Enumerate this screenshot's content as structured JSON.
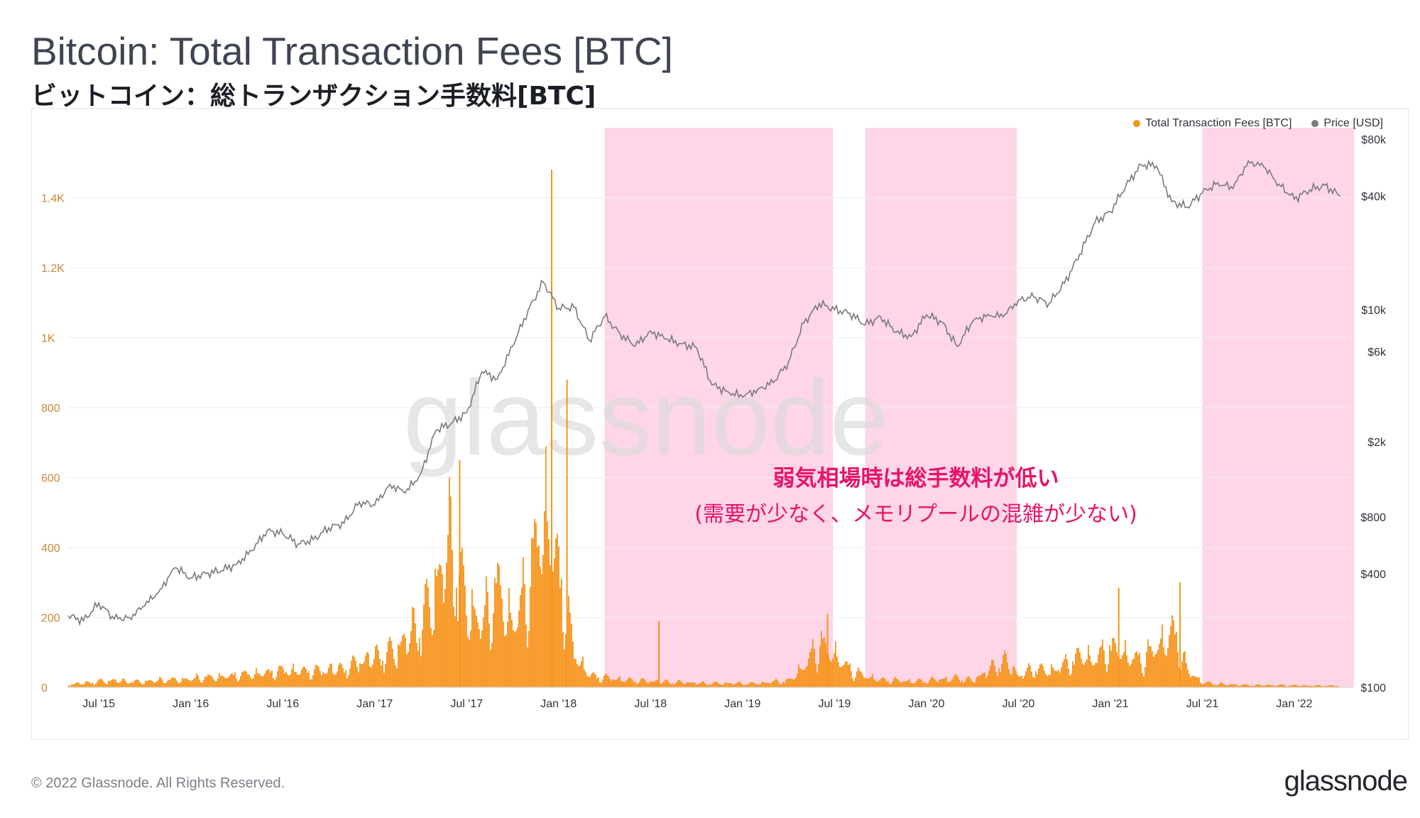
{
  "title": "Bitcoin: Total Transaction Fees [BTC]",
  "subtitle": "ビットコイン：総トランザクション手数料[BTC]",
  "footer": {
    "copyright": "© 2022 Glassnode. All Rights Reserved.",
    "logo": "glassnode"
  },
  "watermark": "glassnode",
  "annotation": {
    "line1": "弱気相場時は総手数料が低い",
    "line2": "(需要が少なく、メモリプールの混雑が少ない)",
    "color": "#e8136a"
  },
  "colors": {
    "fees": "#f7931a",
    "price": "#7a7a7a",
    "shade": "#ffd6e7",
    "left_tick": "#c98a3a"
  },
  "chart_data": {
    "type": "bar",
    "legend": [
      "Total Transaction Fees [BTC]",
      "Price [USD]"
    ],
    "legend_position": "top-right",
    "x_ticks": [
      "Jul '15",
      "Jan '16",
      "Jul '16",
      "Jan '17",
      "Jul '17",
      "Jan '18",
      "Jul '18",
      "Jan '19",
      "Jul '19",
      "Jan '20",
      "Jul '20",
      "Jan '21",
      "Jul '21",
      "Jan '22"
    ],
    "y_left": {
      "ticks": [
        "0",
        "200",
        "400",
        "600",
        "800",
        "1K",
        "1.2K",
        "1.4K"
      ],
      "range": [
        0,
        1600
      ]
    },
    "y_right": {
      "scale": "log",
      "ticks": [
        "$100",
        "$400",
        "$800",
        "$2k",
        "$6k",
        "$10k",
        "$40k",
        "$80k"
      ],
      "range": [
        100,
        80000
      ]
    },
    "grid": true,
    "shaded_regions": [
      [
        "Apr '18",
        "Jun '19"
      ],
      [
        "Sep '19",
        "Jun '20"
      ],
      [
        "Jul '21",
        "Apr '22"
      ]
    ],
    "series": [
      {
        "name": "Total Transaction Fees [BTC]",
        "type": "bar",
        "color": "#f7931a",
        "points": [
          [
            "May '15",
            12
          ],
          [
            "Jun '15",
            15
          ],
          [
            "Jul '15",
            22
          ],
          [
            "Aug '15",
            25
          ],
          [
            "Sep '15",
            20
          ],
          [
            "Oct '15",
            22
          ],
          [
            "Nov '15",
            25
          ],
          [
            "Dec '15",
            28
          ],
          [
            "Jan '16",
            30
          ],
          [
            "Feb '16",
            35
          ],
          [
            "Mar '16",
            40
          ],
          [
            "Apr '16",
            45
          ],
          [
            "May '16",
            48
          ],
          [
            "Jun '16",
            55
          ],
          [
            "Jul '16",
            60
          ],
          [
            "Aug '16",
            62
          ],
          [
            "Sep '16",
            58
          ],
          [
            "Oct '16",
            62
          ],
          [
            "Nov '16",
            70
          ],
          [
            "Dec '16",
            90
          ],
          [
            "Jan '17",
            110
          ],
          [
            "Feb '17",
            130
          ],
          [
            "Mar '17",
            170
          ],
          [
            "Apr '17",
            240
          ],
          [
            "May '17",
            380
          ],
          [
            "Jun '17",
            520
          ],
          [
            "Jul '17",
            300
          ],
          [
            "Aug '17",
            230
          ],
          [
            "Sep '17",
            350
          ],
          [
            "Oct '17",
            230
          ],
          [
            "Nov '17",
            350
          ],
          [
            "Dec '17",
            650
          ],
          [
            "Jan '18",
            420
          ],
          [
            "Feb '18",
            120
          ],
          [
            "Mar '18",
            45
          ],
          [
            "Apr '18",
            35
          ],
          [
            "May '18",
            30
          ],
          [
            "Jun '18",
            25
          ],
          [
            "Jul '18",
            22
          ],
          [
            "Aug '18",
            20
          ],
          [
            "Sep '18",
            18
          ],
          [
            "Oct '18",
            15
          ],
          [
            "Nov '18",
            15
          ],
          [
            "Dec '18",
            15
          ],
          [
            "Jan '19",
            14
          ],
          [
            "Feb '19",
            15
          ],
          [
            "Mar '19",
            20
          ],
          [
            "Apr '19",
            25
          ],
          [
            "May '19",
            80
          ],
          [
            "Jun '19",
            150
          ],
          [
            "Jul '19",
            120
          ],
          [
            "Aug '19",
            60
          ],
          [
            "Sep '19",
            40
          ],
          [
            "Oct '19",
            28
          ],
          [
            "Nov '19",
            25
          ],
          [
            "Dec '19",
            22
          ],
          [
            "Jan '20",
            25
          ],
          [
            "Feb '20",
            30
          ],
          [
            "Mar '20",
            35
          ],
          [
            "Apr '20",
            25
          ],
          [
            "May '20",
            60
          ],
          [
            "Jun '20",
            100
          ],
          [
            "Jul '20",
            40
          ],
          [
            "Aug '20",
            70
          ],
          [
            "Sep '20",
            60
          ],
          [
            "Oct '20",
            80
          ],
          [
            "Nov '20",
            120
          ],
          [
            "Dec '20",
            100
          ],
          [
            "Jan '21",
            150
          ],
          [
            "Feb '21",
            120
          ],
          [
            "Mar '21",
            90
          ],
          [
            "Apr '21",
            150
          ],
          [
            "May '21",
            200
          ],
          [
            "Jun '21",
            60
          ],
          [
            "Jul '21",
            18
          ],
          [
            "Aug '21",
            12
          ],
          [
            "Sep '21",
            10
          ],
          [
            "Oct '21",
            8
          ],
          [
            "Nov '21",
            8
          ],
          [
            "Dec '21",
            8
          ],
          [
            "Jan '22",
            7
          ],
          [
            "Feb '22",
            6
          ],
          [
            "Mar '22",
            6
          ],
          [
            "Apr '22",
            6
          ]
        ],
        "peaks": [
          [
            "Dec '17",
            1480
          ],
          [
            "Jan '18",
            880
          ],
          [
            "Jun '17",
            650
          ],
          [
            "Jun '19",
            210
          ],
          [
            "May '21",
            300
          ],
          [
            "Jan '21",
            285
          ],
          [
            "Jul '18",
            190
          ]
        ]
      },
      {
        "name": "Price [USD]",
        "type": "line",
        "color": "#7a7a7a",
        "points": [
          [
            "May '15",
            240
          ],
          [
            "Jun '15",
            225
          ],
          [
            "Jul '15",
            280
          ],
          [
            "Aug '15",
            230
          ],
          [
            "Sep '15",
            235
          ],
          [
            "Oct '15",
            270
          ],
          [
            "Nov '15",
            330
          ],
          [
            "Dec '15",
            430
          ],
          [
            "Jan '16",
            380
          ],
          [
            "Feb '16",
            400
          ],
          [
            "Mar '16",
            415
          ],
          [
            "Apr '16",
            450
          ],
          [
            "May '16",
            530
          ],
          [
            "Jun '16",
            680
          ],
          [
            "Jul '16",
            650
          ],
          [
            "Aug '16",
            575
          ],
          [
            "Sep '16",
            605
          ],
          [
            "Oct '16",
            700
          ],
          [
            "Nov '16",
            740
          ],
          [
            "Dec '16",
            960
          ],
          [
            "Jan '17",
            920
          ],
          [
            "Feb '17",
            1190
          ],
          [
            "Mar '17",
            1070
          ],
          [
            "Apr '17",
            1350
          ],
          [
            "May '17",
            2300
          ],
          [
            "Jun '17",
            2500
          ],
          [
            "Jul '17",
            2850
          ],
          [
            "Aug '17",
            4700
          ],
          [
            "Sep '17",
            4300
          ],
          [
            "Oct '17",
            6400
          ],
          [
            "Nov '17",
            9900
          ],
          [
            "Dec '17",
            14000
          ],
          [
            "Jan '18",
            10200
          ],
          [
            "Feb '18",
            10300
          ],
          [
            "Mar '18",
            6900
          ],
          [
            "Apr '18",
            9200
          ],
          [
            "May '18",
            7500
          ],
          [
            "Jun '18",
            6400
          ],
          [
            "Jul '18",
            7700
          ],
          [
            "Aug '18",
            7000
          ],
          [
            "Sep '18",
            6600
          ],
          [
            "Oct '18",
            6300
          ],
          [
            "Nov '18",
            4000
          ],
          [
            "Dec '18",
            3700
          ],
          [
            "Jan '19",
            3450
          ],
          [
            "Feb '19",
            3800
          ],
          [
            "Mar '19",
            4100
          ],
          [
            "Apr '19",
            5300
          ],
          [
            "May '19",
            8500
          ],
          [
            "Jun '19",
            10800
          ],
          [
            "Jul '19",
            10000
          ],
          [
            "Aug '19",
            9600
          ],
          [
            "Sep '19",
            8300
          ],
          [
            "Oct '19",
            9200
          ],
          [
            "Nov '19",
            7600
          ],
          [
            "Dec '19",
            7200
          ],
          [
            "Jan '20",
            9400
          ],
          [
            "Feb '20",
            8600
          ],
          [
            "Mar '20",
            6400
          ],
          [
            "Apr '20",
            8600
          ],
          [
            "May '20",
            9450
          ],
          [
            "Jun '20",
            9150
          ],
          [
            "Jul '20",
            11300
          ],
          [
            "Aug '20",
            11650
          ],
          [
            "Sep '20",
            10800
          ],
          [
            "Oct '20",
            13800
          ],
          [
            "Nov '20",
            19700
          ],
          [
            "Dec '20",
            29000
          ],
          [
            "Jan '21",
            33100
          ],
          [
            "Feb '21",
            45000
          ],
          [
            "Mar '21",
            58800
          ],
          [
            "Apr '21",
            57700
          ],
          [
            "May '21",
            37300
          ],
          [
            "Jun '21",
            35000
          ],
          [
            "Jul '21",
            41500
          ],
          [
            "Aug '21",
            47100
          ],
          [
            "Sep '21",
            43800
          ],
          [
            "Oct '21",
            61300
          ],
          [
            "Nov '21",
            57000
          ],
          [
            "Dec '21",
            46300
          ],
          [
            "Jan '22",
            38500
          ],
          [
            "Feb '22",
            43200
          ],
          [
            "Mar '22",
            45500
          ],
          [
            "Apr '22",
            40000
          ]
        ]
      }
    ]
  }
}
